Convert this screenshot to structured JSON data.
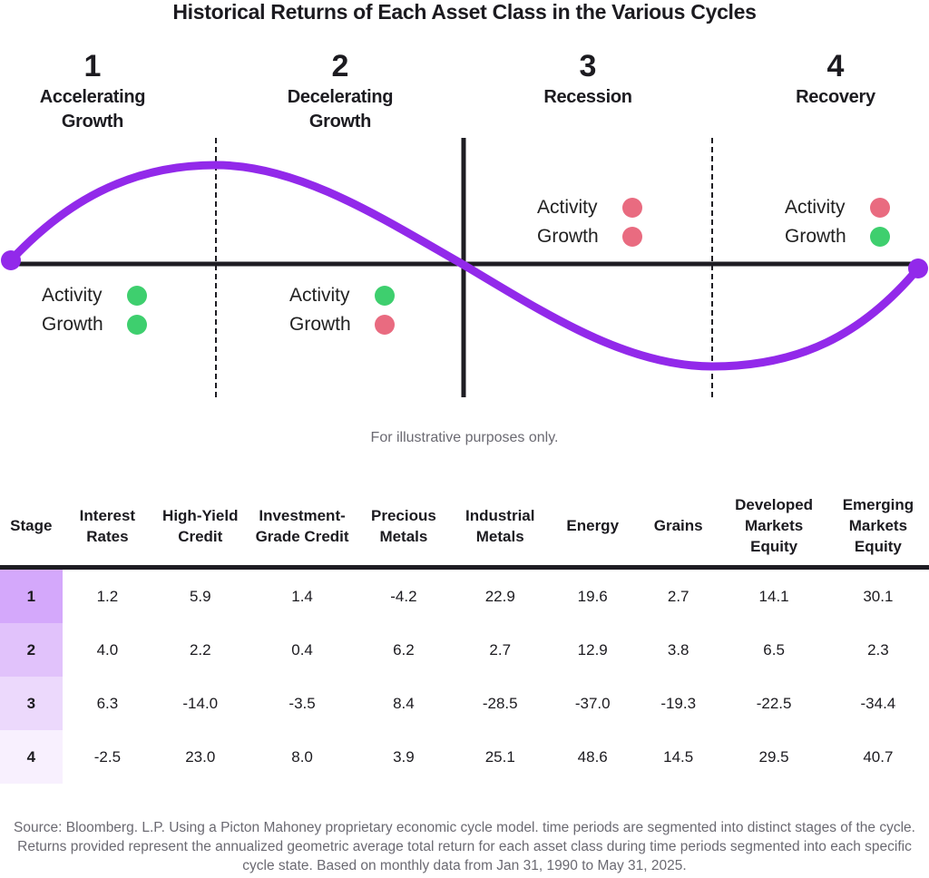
{
  "title": "Historical Returns of Each Asset Class in the Various Cycles",
  "colors": {
    "curve": "#9229ea",
    "axis": "#1e1d23",
    "positive": "#3ecf6e",
    "negative": "#e96b80",
    "stage_shades": [
      "#d4a8fb",
      "#e1c2fb",
      "#ecd9fc",
      "#f8f0fe"
    ]
  },
  "stages": [
    {
      "number": "1",
      "name_line1": "Accelerating",
      "name_line2": "Growth",
      "indicators": [
        {
          "label": "Activity",
          "status": "positive"
        },
        {
          "label": "Growth",
          "status": "positive"
        }
      ]
    },
    {
      "number": "2",
      "name_line1": "Decelerating",
      "name_line2": "Growth",
      "indicators": [
        {
          "label": "Activity",
          "status": "positive"
        },
        {
          "label": "Growth",
          "status": "negative"
        }
      ]
    },
    {
      "number": "3",
      "name_line1": "Recession",
      "name_line2": "",
      "indicators": [
        {
          "label": "Activity",
          "status": "negative"
        },
        {
          "label": "Growth",
          "status": "negative"
        }
      ]
    },
    {
      "number": "4",
      "name_line1": "Recovery",
      "name_line2": "",
      "indicators": [
        {
          "label": "Activity",
          "status": "negative"
        },
        {
          "label": "Growth",
          "status": "positive"
        }
      ]
    }
  ],
  "note": "For illustrative purposes only.",
  "table": {
    "headers": [
      [
        "Stage"
      ],
      [
        "Interest",
        "Rates"
      ],
      [
        "High-Yield",
        "Credit"
      ],
      [
        "Investment-",
        "Grade Credit"
      ],
      [
        "Precious",
        "Metals"
      ],
      [
        "Industrial",
        "Metals"
      ],
      [
        "Energy"
      ],
      [
        "Grains"
      ],
      [
        "Developed",
        "Markets",
        "Equity"
      ],
      [
        "Emerging",
        "Markets",
        "Equity"
      ]
    ],
    "rows": [
      [
        "1",
        "1.2",
        "5.9",
        "1.4",
        "-4.2",
        "22.9",
        "19.6",
        "2.7",
        "14.1",
        "30.1"
      ],
      [
        "2",
        "4.0",
        "2.2",
        "0.4",
        "6.2",
        "2.7",
        "12.9",
        "3.8",
        "6.5",
        "2.3"
      ],
      [
        "3",
        "6.3",
        "-14.0",
        "-3.5",
        "8.4",
        "-28.5",
        "-37.0",
        "-19.3",
        "-22.5",
        "-34.4"
      ],
      [
        "4",
        "-2.5",
        "23.0",
        "8.0",
        "3.9",
        "25.1",
        "48.6",
        "14.5",
        "29.5",
        "40.7"
      ]
    ]
  },
  "source": "Source: Bloomberg. L.P. Using a Picton Mahoney proprietary economic cycle model. time periods are segmented into distinct stages of the cycle. Returns provided represent the annualized geometric average total return for each asset class during time periods segmented into each specific cycle state. Based on monthly data from Jan 31, 1990 to May 31, 2025."
}
